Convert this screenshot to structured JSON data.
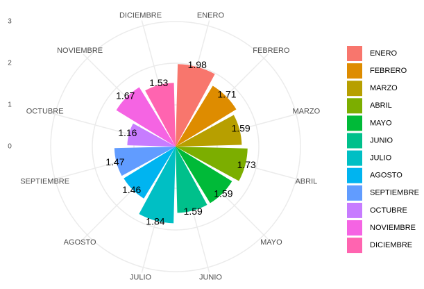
{
  "chart_data": {
    "type": "rose",
    "categories": [
      "ENERO",
      "FEBRERO",
      "MARZO",
      "ABRIL",
      "MAYO",
      "JUNIO",
      "JULIO",
      "AGOSTO",
      "SEPTIEMBRE",
      "OCTUBRE",
      "NOVIEMBRE",
      "DICIEMBRE"
    ],
    "values": [
      1.98,
      1.71,
      1.59,
      1.73,
      1.59,
      1.59,
      1.84,
      1.46,
      1.47,
      1.16,
      1.67,
      1.53
    ],
    "colors": [
      "#F8766D",
      "#DE8C00",
      "#B79F00",
      "#7CAE00",
      "#00BA38",
      "#00C08B",
      "#00BFC4",
      "#00B4F0",
      "#619CFF",
      "#C77CFF",
      "#F564E3",
      "#FF64B0"
    ],
    "ylim": [
      0,
      3
    ],
    "yticks": [
      0,
      1,
      2,
      3
    ],
    "grid": true,
    "legend": "right"
  }
}
